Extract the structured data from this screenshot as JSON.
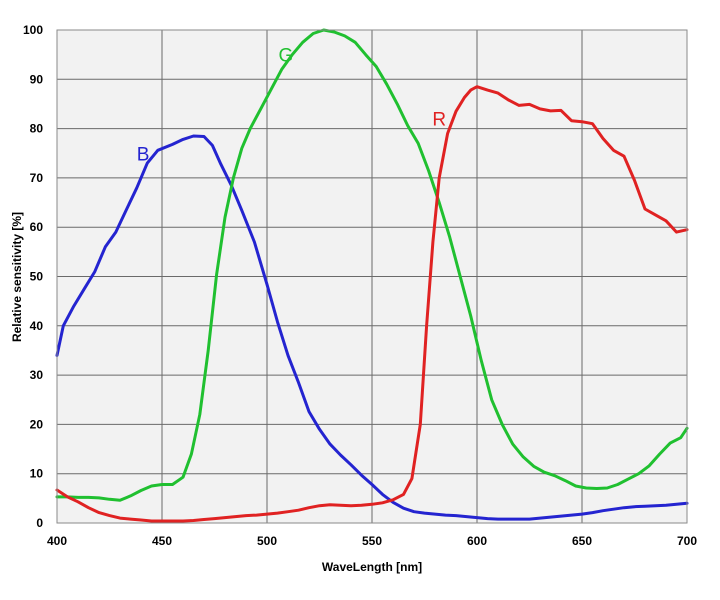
{
  "chart_data": {
    "type": "line",
    "xlabel": "WaveLength [nm]",
    "ylabel": "Relative sensitivity [%]",
    "xlim": [
      400,
      700
    ],
    "ylim": [
      0,
      100
    ],
    "xticks": [
      400,
      450,
      500,
      550,
      600,
      650,
      700
    ],
    "yticks": [
      0,
      10,
      20,
      30,
      40,
      50,
      60,
      70,
      80,
      90,
      100
    ],
    "grid": true,
    "plot_background": "#f2f2f2",
    "series": [
      {
        "name": "B",
        "color": "#2424d0",
        "label_at": [
          441,
          75
        ],
        "points": [
          [
            400,
            34
          ],
          [
            403,
            40
          ],
          [
            408,
            44
          ],
          [
            413,
            47.5
          ],
          [
            418,
            51
          ],
          [
            423,
            56
          ],
          [
            428,
            59
          ],
          [
            433,
            63.5
          ],
          [
            438,
            68
          ],
          [
            443,
            73
          ],
          [
            448,
            75.6
          ],
          [
            455,
            76.8
          ],
          [
            460,
            77.8
          ],
          [
            465,
            78.5
          ],
          [
            470,
            78.4
          ],
          [
            474,
            76.6
          ],
          [
            478,
            72.8
          ],
          [
            483,
            68.5
          ],
          [
            488,
            63.4
          ],
          [
            494,
            57
          ],
          [
            500,
            48.4
          ],
          [
            505,
            40.8
          ],
          [
            510,
            34
          ],
          [
            515,
            28.5
          ],
          [
            520,
            22.6
          ],
          [
            525,
            19
          ],
          [
            530,
            16
          ],
          [
            535,
            13.8
          ],
          [
            540,
            11.8
          ],
          [
            545,
            9.7
          ],
          [
            550,
            7.8
          ],
          [
            555,
            5.8
          ],
          [
            560,
            4.2
          ],
          [
            565,
            3
          ],
          [
            570,
            2.3
          ],
          [
            575,
            2
          ],
          [
            580,
            1.8
          ],
          [
            585,
            1.6
          ],
          [
            590,
            1.5
          ],
          [
            595,
            1.3
          ],
          [
            600,
            1.1
          ],
          [
            605,
            0.9
          ],
          [
            610,
            0.8
          ],
          [
            615,
            0.8
          ],
          [
            620,
            0.8
          ],
          [
            625,
            0.8
          ],
          [
            630,
            1
          ],
          [
            635,
            1.2
          ],
          [
            640,
            1.4
          ],
          [
            645,
            1.6
          ],
          [
            650,
            1.8
          ],
          [
            655,
            2.1
          ],
          [
            660,
            2.5
          ],
          [
            665,
            2.8
          ],
          [
            670,
            3.1
          ],
          [
            675,
            3.3
          ],
          [
            680,
            3.4
          ],
          [
            685,
            3.5
          ],
          [
            690,
            3.6
          ],
          [
            695,
            3.8
          ],
          [
            700,
            4
          ]
        ]
      },
      {
        "name": "G",
        "color": "#20c030",
        "label_at": [
          509,
          95
        ],
        "points": [
          [
            400,
            5.3
          ],
          [
            405,
            5.3
          ],
          [
            410,
            5.2
          ],
          [
            415,
            5.2
          ],
          [
            420,
            5.1
          ],
          [
            425,
            4.8
          ],
          [
            430,
            4.6
          ],
          [
            435,
            5.5
          ],
          [
            440,
            6.6
          ],
          [
            445,
            7.5
          ],
          [
            450,
            7.8
          ],
          [
            455,
            7.8
          ],
          [
            460,
            9.3
          ],
          [
            464,
            14
          ],
          [
            468,
            22
          ],
          [
            472,
            35
          ],
          [
            476,
            50.4
          ],
          [
            480,
            62
          ],
          [
            484,
            70
          ],
          [
            488,
            76
          ],
          [
            492,
            80
          ],
          [
            497,
            84
          ],
          [
            502,
            88
          ],
          [
            507,
            92
          ],
          [
            512,
            95
          ],
          [
            517,
            97.5
          ],
          [
            522,
            99.3
          ],
          [
            527,
            100
          ],
          [
            532,
            99.6
          ],
          [
            537,
            98.8
          ],
          [
            542,
            97.5
          ],
          [
            547,
            95
          ],
          [
            552,
            92.6
          ],
          [
            557,
            89
          ],
          [
            562,
            85
          ],
          [
            567,
            80.6
          ],
          [
            572,
            77
          ],
          [
            577,
            71.4
          ],
          [
            582,
            65
          ],
          [
            587,
            58
          ],
          [
            592,
            50
          ],
          [
            597,
            42
          ],
          [
            602,
            33
          ],
          [
            607,
            25
          ],
          [
            612,
            20
          ],
          [
            617,
            16
          ],
          [
            622,
            13.4
          ],
          [
            627,
            11.5
          ],
          [
            632,
            10.3
          ],
          [
            637,
            9.6
          ],
          [
            642,
            8.6
          ],
          [
            647,
            7.5
          ],
          [
            652,
            7.1
          ],
          [
            657,
            7
          ],
          [
            662,
            7.1
          ],
          [
            667,
            7.8
          ],
          [
            672,
            8.9
          ],
          [
            677,
            10
          ],
          [
            682,
            11.6
          ],
          [
            687,
            14
          ],
          [
            692,
            16.2
          ],
          [
            697,
            17.3
          ],
          [
            700,
            19.2
          ]
        ]
      },
      {
        "name": "R",
        "color": "#e02222",
        "label_at": [
          582,
          82
        ],
        "points": [
          [
            400,
            6.7
          ],
          [
            405,
            5.3
          ],
          [
            410,
            4.3
          ],
          [
            415,
            3.1
          ],
          [
            420,
            2.1
          ],
          [
            425,
            1.5
          ],
          [
            430,
            1
          ],
          [
            435,
            0.8
          ],
          [
            440,
            0.6
          ],
          [
            445,
            0.4
          ],
          [
            450,
            0.4
          ],
          [
            455,
            0.4
          ],
          [
            460,
            0.4
          ],
          [
            465,
            0.5
          ],
          [
            470,
            0.7
          ],
          [
            475,
            0.9
          ],
          [
            480,
            1.1
          ],
          [
            485,
            1.3
          ],
          [
            490,
            1.5
          ],
          [
            495,
            1.6
          ],
          [
            500,
            1.8
          ],
          [
            505,
            2
          ],
          [
            510,
            2.3
          ],
          [
            515,
            2.6
          ],
          [
            520,
            3.1
          ],
          [
            525,
            3.5
          ],
          [
            530,
            3.7
          ],
          [
            535,
            3.6
          ],
          [
            540,
            3.5
          ],
          [
            545,
            3.6
          ],
          [
            550,
            3.8
          ],
          [
            555,
            4.1
          ],
          [
            560,
            4.7
          ],
          [
            565,
            5.8
          ],
          [
            569,
            9
          ],
          [
            573,
            20
          ],
          [
            576,
            40
          ],
          [
            579,
            57
          ],
          [
            582,
            70
          ],
          [
            586,
            79
          ],
          [
            590,
            83.5
          ],
          [
            594,
            86.3
          ],
          [
            597,
            87.8
          ],
          [
            600,
            88.5
          ],
          [
            605,
            87.8
          ],
          [
            610,
            87.2
          ],
          [
            615,
            85.8
          ],
          [
            620,
            84.7
          ],
          [
            625,
            84.9
          ],
          [
            630,
            84
          ],
          [
            635,
            83.6
          ],
          [
            640,
            83.7
          ],
          [
            645,
            81.6
          ],
          [
            650,
            81.4
          ],
          [
            655,
            81
          ],
          [
            660,
            78
          ],
          [
            665,
            75.6
          ],
          [
            670,
            74.4
          ],
          [
            675,
            69.5
          ],
          [
            680,
            63.7
          ],
          [
            685,
            62.5
          ],
          [
            690,
            61.3
          ],
          [
            695,
            59
          ],
          [
            700,
            59.5
          ]
        ]
      }
    ]
  }
}
